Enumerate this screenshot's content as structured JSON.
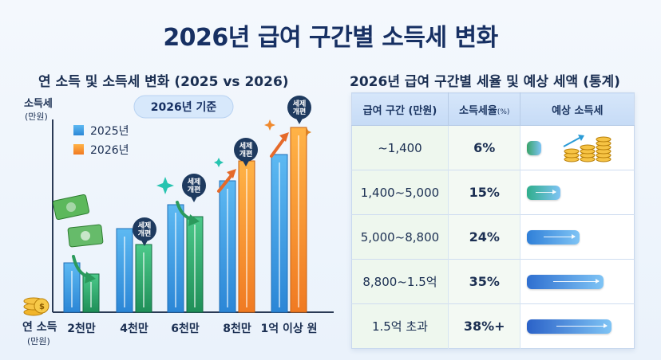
{
  "title": "2026년 급여 구간별 소득세 변화",
  "left_subtitle": "연 소득 및 소득세 변화 (2025 vs 2026)",
  "right_subtitle": "2026년 급여 구간별 세율 및 예상 세액 (통계)",
  "colors": {
    "series_2025": "#3aa0e8",
    "series_2026": "#27a86a",
    "series_2026_legend": "#f28a2e",
    "bubble": "#1e3a5f"
  },
  "chart_data": {
    "type": "bar",
    "title": "연 소득 및 소득세 변화 (2025 vs 2026)",
    "ylabel": "소득세",
    "ylabel_unit": "(만원)",
    "xlabel": "연 소득",
    "xlabel_unit": "(만원)",
    "badge": "2026년 기준",
    "categories": [
      "2천만",
      "4천만",
      "6천만",
      "8천만",
      "1억 이상 원"
    ],
    "series": [
      {
        "name": "2025년",
        "values": [
          62,
          105,
          135,
          165,
          198
        ]
      },
      {
        "name": "2026년",
        "values": [
          48,
          85,
          120,
          190,
          232
        ]
      }
    ],
    "ylim": [
      0,
      240
    ],
    "annotations": [
      "세제\n개편",
      "세제\n개편",
      "세제\n개편",
      "세제\n개편"
    ],
    "legend": "top-left",
    "grid": false
  },
  "table": {
    "headers": [
      "급여 구간 (만원)",
      "소득세율",
      "(%)",
      "예상 소득세"
    ],
    "rows": [
      {
        "range": "~1,400",
        "rate": "6%",
        "level": 0.15,
        "color": "#3aa46a"
      },
      {
        "range": "1,400~5,000",
        "rate": "15%",
        "level": 0.35,
        "color": "#2fae8c"
      },
      {
        "range": "5,000~8,800",
        "rate": "24%",
        "level": 0.55,
        "color": "#2f7fd8"
      },
      {
        "range": "8,800~1.5억",
        "rate": "35%",
        "level": 0.8,
        "color": "#2f6fd0"
      },
      {
        "range": "1.5억 초과",
        "rate": "38%+",
        "level": 0.88,
        "color": "#2b62c8"
      }
    ]
  }
}
